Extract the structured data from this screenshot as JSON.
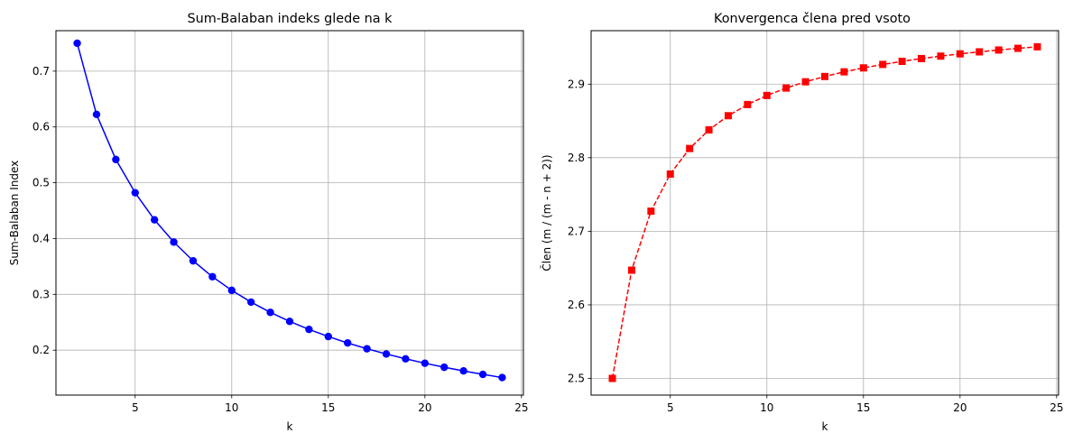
{
  "chart_data": [
    {
      "type": "line",
      "title": "Sum-Balaban indeks glede na k",
      "xlabel": "k",
      "ylabel": "Sum-Balaban Index",
      "xlim": [
        0.9,
        25.1
      ],
      "ylim": [
        0.1195,
        0.7725
      ],
      "xticks": [
        5,
        10,
        15,
        20,
        25
      ],
      "yticks": [
        0.2,
        0.3,
        0.4,
        0.5,
        0.6,
        0.7
      ],
      "grid": true,
      "series": [
        {
          "color": "#0000ff",
          "marker": "circle",
          "linestyle": "solid",
          "x": [
            2,
            3,
            4,
            5,
            6,
            7,
            8,
            9,
            10,
            11,
            12,
            13,
            14,
            15,
            16,
            17,
            18,
            19,
            20,
            21,
            22,
            23,
            24
          ],
          "y": [
            0.75,
            0.6225,
            0.5417,
            0.4821,
            0.4336,
            0.3937,
            0.3601,
            0.3316,
            0.3072,
            0.2861,
            0.2677,
            0.2515,
            0.2372,
            0.2244,
            0.2129,
            0.2025,
            0.1931,
            0.1845,
            0.1766,
            0.1694,
            0.1628,
            0.1566,
            0.1509
          ]
        }
      ]
    },
    {
      "type": "line",
      "title": "Konvergenca člena pred vsoto",
      "xlabel": "k",
      "ylabel": "Člen (m / (m - n + 2))",
      "xlim": [
        0.9,
        25.1
      ],
      "ylim": [
        2.4773,
        2.9727
      ],
      "xticks": [
        5,
        10,
        15,
        20,
        25
      ],
      "yticks": [
        2.5,
        2.6,
        2.7,
        2.8,
        2.9
      ],
      "grid": true,
      "series": [
        {
          "color": "#ff0000",
          "marker": "square",
          "linestyle": "dashed",
          "x": [
            2,
            3,
            4,
            5,
            6,
            7,
            8,
            9,
            10,
            11,
            12,
            13,
            14,
            15,
            16,
            17,
            18,
            19,
            20,
            21,
            22,
            23,
            24
          ],
          "y": [
            2.5,
            2.6471,
            2.7273,
            2.7778,
            2.8125,
            2.8378,
            2.8571,
            2.8723,
            2.8846,
            2.8947,
            2.9032,
            2.9104,
            2.9167,
            2.9221,
            2.9268,
            2.931,
            2.9348,
            2.9381,
            2.9412,
            2.9439,
            2.9464,
            2.9487,
            2.9508
          ]
        }
      ]
    }
  ]
}
